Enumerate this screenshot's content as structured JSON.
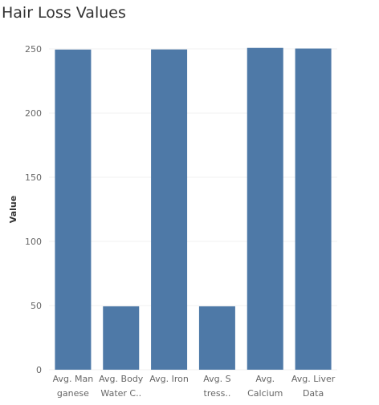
{
  "chart_data": {
    "type": "bar",
    "title": "Hair Loss Values",
    "xlabel": "",
    "ylabel": "Value",
    "categories": [
      [
        "Avg. Man",
        "ganese"
      ],
      [
        "Avg. Body",
        "Water C.."
      ],
      [
        "Avg. Iron"
      ],
      [
        "Avg. S",
        "tress.."
      ],
      [
        "Avg.",
        "Calcium"
      ],
      [
        "Avg. Liver",
        "Data"
      ]
    ],
    "values": [
      249.5,
      49.4,
      249.6,
      49.4,
      250.8,
      250.3
    ],
    "ylim": [
      0,
      250
    ],
    "yticks": [
      0,
      50,
      100,
      150,
      200,
      250
    ],
    "grid": true,
    "bar_color": "#4e79a7",
    "grid_color": "#f0f0f0"
  }
}
